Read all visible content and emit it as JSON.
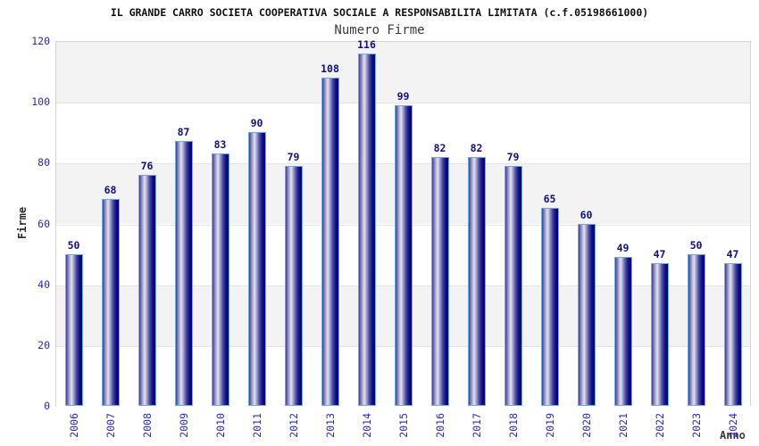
{
  "header": {
    "title": "IL GRANDE CARRO SOCIETA COOPERATIVA SOCIALE A RESPONSABILITA LIMITATA (c.f.05198661000)",
    "subtitle": "Numero Firme"
  },
  "chart_data": {
    "type": "bar",
    "title": "Numero Firme",
    "xlabel": "Anno",
    "ylabel": "Firme",
    "categories": [
      "2006",
      "2007",
      "2008",
      "2009",
      "2010",
      "2011",
      "2012",
      "2013",
      "2014",
      "2015",
      "2016",
      "2017",
      "2018",
      "2019",
      "2020",
      "2021",
      "2022",
      "2023",
      "2024"
    ],
    "values": [
      50,
      68,
      76,
      87,
      83,
      90,
      79,
      108,
      116,
      99,
      82,
      82,
      79,
      65,
      60,
      49,
      47,
      50,
      47
    ],
    "ylim": [
      0,
      120
    ],
    "yticks": [
      0,
      20,
      40,
      60,
      80,
      100,
      120
    ],
    "value_labels_shown": true,
    "legend": "none",
    "grid": "horizontal-bands",
    "colors": {
      "bar_border": "#74aae2",
      "bar_gradient_dark": "#00008b",
      "bar_gradient_light": "#e2e2ef",
      "value_label": "#10108a",
      "tick_label": "#2929cc",
      "band_fill": "#f3f3f3",
      "gridline": "#e4e4e4",
      "plot_border": "#d4d4d4",
      "title_color": "#111111",
      "subtitle_color": "#3a3a3a",
      "axis_title_color": "#2b2b2b"
    }
  }
}
